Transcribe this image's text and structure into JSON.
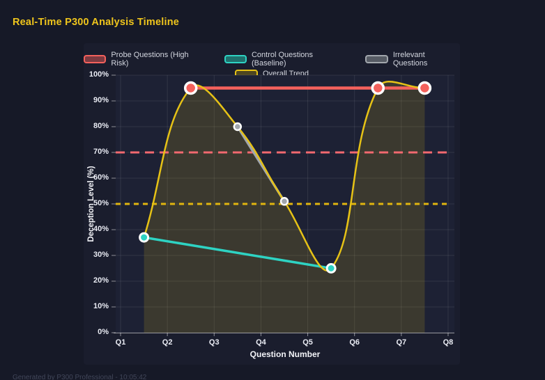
{
  "page": {
    "title": "Real-Time P300 Analysis Timeline",
    "title_color": "#efc51c",
    "footer": "Generated by P300 Professional - 10:05:42"
  },
  "chart_data": {
    "type": "line",
    "xlabel": "Question Number",
    "ylabel": "Deception Level (%)",
    "xlim": [
      1,
      8
    ],
    "ylim": [
      0,
      100
    ],
    "grid": true,
    "legend_position": "top",
    "x_ticks": [
      "Q1",
      "Q2",
      "Q3",
      "Q4",
      "Q5",
      "Q6",
      "Q7",
      "Q8"
    ],
    "y_ticks": [
      0,
      10,
      20,
      30,
      40,
      50,
      60,
      70,
      80,
      90,
      100
    ],
    "y_tick_suffix": "%",
    "series": [
      {
        "name": "Probe Questions (High Risk)",
        "color": "#f4615c",
        "swatch_fill": "#7c3a41",
        "style": "line-markers",
        "points": [
          [
            2.5,
            95
          ],
          [
            6.5,
            95
          ],
          [
            7.5,
            95
          ]
        ]
      },
      {
        "name": "Control Questions (Baseline)",
        "color": "#2ed3c3",
        "swatch_fill": "#1f716d",
        "style": "line-markers",
        "points": [
          [
            1.5,
            37
          ],
          [
            5.5,
            25
          ]
        ]
      },
      {
        "name": "Irrelevant Questions",
        "color": "#a2a7ad",
        "swatch_fill": "#565b64",
        "style": "line-markers",
        "points": [
          [
            3.5,
            80
          ],
          [
            4.5,
            51
          ]
        ]
      },
      {
        "name": "Overall Trend",
        "color": "#e6c216",
        "swatch_fill": "#4e4620",
        "style": "smooth-area",
        "fill_color": "rgba(232,196,18,0.15)",
        "points": [
          [
            1.5,
            37
          ],
          [
            2.5,
            95
          ],
          [
            3.5,
            80
          ],
          [
            4.5,
            51
          ],
          [
            5.5,
            25
          ],
          [
            6.5,
            95
          ],
          [
            7.5,
            95
          ]
        ]
      }
    ],
    "thresholds": [
      {
        "y": 70,
        "color": "#f2696f",
        "dash": [
          13,
          8
        ]
      },
      {
        "y": 50,
        "color": "#e0b50f",
        "dash": [
          7,
          6
        ]
      }
    ]
  }
}
